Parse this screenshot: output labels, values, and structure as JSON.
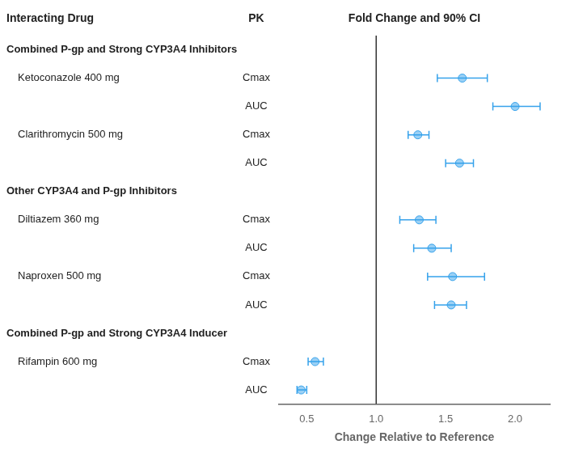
{
  "chart_data": {
    "type": "forest",
    "orientation": "horizontal",
    "column_headers": [
      "Interacting Drug",
      "PK",
      "Fold Change and 90% CI"
    ],
    "xlabel": "Change Relative to Reference",
    "xlim": [
      0.3,
      2.25
    ],
    "xticks": [
      0.5,
      {
        "value": 1.0,
        "label": "1.0"
      },
      1.5,
      {
        "value": 2.0,
        "label": "2.0"
      }
    ],
    "reference_line": 1.0,
    "grid": false,
    "tick_labels": "x",
    "groups": [
      {
        "name": "Combined P-gp and Strong CYP3A4 Inhibitors",
        "drugs": [
          {
            "name": "Ketoconazole 400 mg",
            "pk": [
              {
                "name": "Cmax",
                "mean": 1.62,
                "lo": 1.44,
                "hi": 1.8
              },
              {
                "name": "AUC",
                "mean": 2.0,
                "lo": 1.84,
                "hi": 2.18
              }
            ]
          },
          {
            "name": "Clarithromycin 500 mg",
            "pk": [
              {
                "name": "Cmax",
                "mean": 1.3,
                "lo": 1.23,
                "hi": 1.38
              },
              {
                "name": "AUC",
                "mean": 1.6,
                "lo": 1.5,
                "hi": 1.7
              }
            ]
          }
        ]
      },
      {
        "name": "Other CYP3A4 and P-gp Inhibitors",
        "drugs": [
          {
            "name": "Diltiazem 360 mg",
            "pk": [
              {
                "name": "Cmax",
                "mean": 1.31,
                "lo": 1.17,
                "hi": 1.43
              },
              {
                "name": "AUC",
                "mean": 1.4,
                "lo": 1.27,
                "hi": 1.54
              }
            ]
          },
          {
            "name": "Naproxen 500 mg",
            "pk": [
              {
                "name": "Cmax",
                "mean": 1.55,
                "lo": 1.37,
                "hi": 1.78
              },
              {
                "name": "AUC",
                "mean": 1.54,
                "lo": 1.42,
                "hi": 1.65
              }
            ]
          }
        ]
      },
      {
        "name": "Combined P-gp and Strong CYP3A4 Inducer",
        "drugs": [
          {
            "name": "Rifampin 600 mg",
            "pk": [
              {
                "name": "Cmax",
                "mean": 0.56,
                "lo": 0.51,
                "hi": 0.62
              },
              {
                "name": "AUC",
                "mean": 0.46,
                "lo": 0.43,
                "hi": 0.5
              }
            ]
          }
        ]
      }
    ]
  }
}
